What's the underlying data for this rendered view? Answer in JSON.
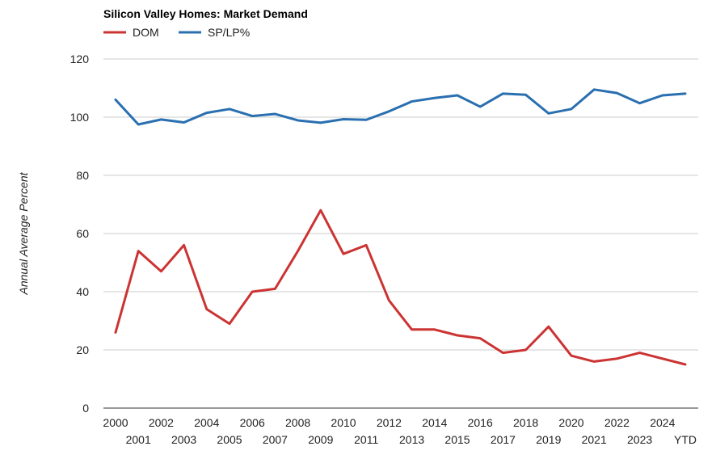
{
  "chart_data": {
    "type": "line",
    "title": "Silicon Valley Homes: Market Demand",
    "ylabel": "Annual Average Percent",
    "xlabel": "",
    "ylim": [
      0,
      120
    ],
    "yticks": [
      "0",
      "20",
      "40",
      "60",
      "80",
      "100",
      "120"
    ],
    "grid": true,
    "legend_position": "top-left",
    "categories": [
      "2000",
      "2001",
      "2002",
      "2003",
      "2004",
      "2005",
      "2006",
      "2007",
      "2008",
      "2009",
      "2010",
      "2011",
      "2012",
      "2013",
      "2014",
      "2015",
      "2016",
      "2017",
      "2018",
      "2019",
      "2020",
      "2021",
      "2022",
      "2023",
      "2024",
      "YTD"
    ],
    "series": [
      {
        "name": "DOM",
        "color": "#cc3333",
        "values": [
          26,
          54,
          47,
          56,
          34,
          29,
          40,
          41,
          54,
          68,
          53,
          56,
          37,
          27,
          27,
          25,
          24,
          19,
          20,
          28,
          18,
          16,
          17,
          19,
          17,
          15
        ]
      },
      {
        "name": "SP/LP%",
        "color": "#2a6fb0",
        "values": [
          106,
          97.5,
          99.2,
          98.2,
          101.5,
          102.8,
          100.4,
          101.1,
          98.9,
          98.1,
          99.3,
          99.1,
          102,
          105.4,
          106.6,
          107.5,
          103.6,
          108.1,
          107.7,
          101.3,
          102.8,
          109.5,
          108.3,
          104.8,
          107.5,
          108.1
        ]
      }
    ]
  }
}
